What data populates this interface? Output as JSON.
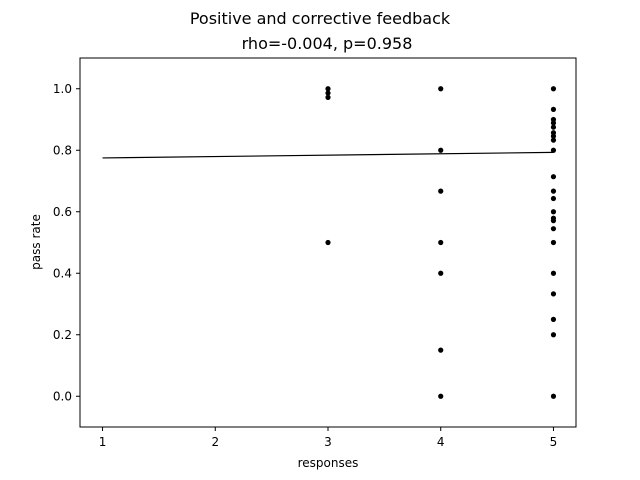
{
  "chart_data": {
    "type": "scatter",
    "title": "Positive and corrective feedback",
    "subtitle": "rho=-0.004, p=0.958",
    "xlabel": "responses",
    "ylabel": "pass rate",
    "xlim": [
      0.8,
      5.2
    ],
    "ylim": [
      -0.1,
      1.1
    ],
    "xticks": [
      1,
      2,
      3,
      4,
      5
    ],
    "yticks": [
      0.0,
      0.2,
      0.4,
      0.6,
      0.8,
      1.0
    ],
    "xtick_labels": [
      "1",
      "2",
      "3",
      "4",
      "5"
    ],
    "ytick_labels": [
      "0.0",
      "0.2",
      "0.4",
      "0.6",
      "0.8",
      "1.0"
    ],
    "grid": false,
    "point_color": "#000000",
    "line_color": "#000000",
    "points": [
      {
        "x": 3,
        "y": 1.0
      },
      {
        "x": 3,
        "y": 0.986
      },
      {
        "x": 3,
        "y": 0.972
      },
      {
        "x": 3,
        "y": 0.5
      },
      {
        "x": 4,
        "y": 1.0
      },
      {
        "x": 4,
        "y": 0.8
      },
      {
        "x": 4,
        "y": 0.667
      },
      {
        "x": 4,
        "y": 0.5
      },
      {
        "x": 4,
        "y": 0.4
      },
      {
        "x": 4,
        "y": 0.15
      },
      {
        "x": 4,
        "y": 0.0
      },
      {
        "x": 5,
        "y": 1.0
      },
      {
        "x": 5,
        "y": 0.933
      },
      {
        "x": 5,
        "y": 0.9
      },
      {
        "x": 5,
        "y": 0.889
      },
      {
        "x": 5,
        "y": 0.875
      },
      {
        "x": 5,
        "y": 0.857
      },
      {
        "x": 5,
        "y": 0.846
      },
      {
        "x": 5,
        "y": 0.833
      },
      {
        "x": 5,
        "y": 0.8
      },
      {
        "x": 5,
        "y": 0.714
      },
      {
        "x": 5,
        "y": 0.667
      },
      {
        "x": 5,
        "y": 0.643
      },
      {
        "x": 5,
        "y": 0.6
      },
      {
        "x": 5,
        "y": 0.579
      },
      {
        "x": 5,
        "y": 0.571
      },
      {
        "x": 5,
        "y": 0.545
      },
      {
        "x": 5,
        "y": 0.5
      },
      {
        "x": 5,
        "y": 0.4
      },
      {
        "x": 5,
        "y": 0.333
      },
      {
        "x": 5,
        "y": 0.25
      },
      {
        "x": 5,
        "y": 0.2
      },
      {
        "x": 5,
        "y": 0.0
      }
    ],
    "fit_line": {
      "x": [
        1,
        5
      ],
      "y": [
        0.775,
        0.793
      ]
    }
  }
}
